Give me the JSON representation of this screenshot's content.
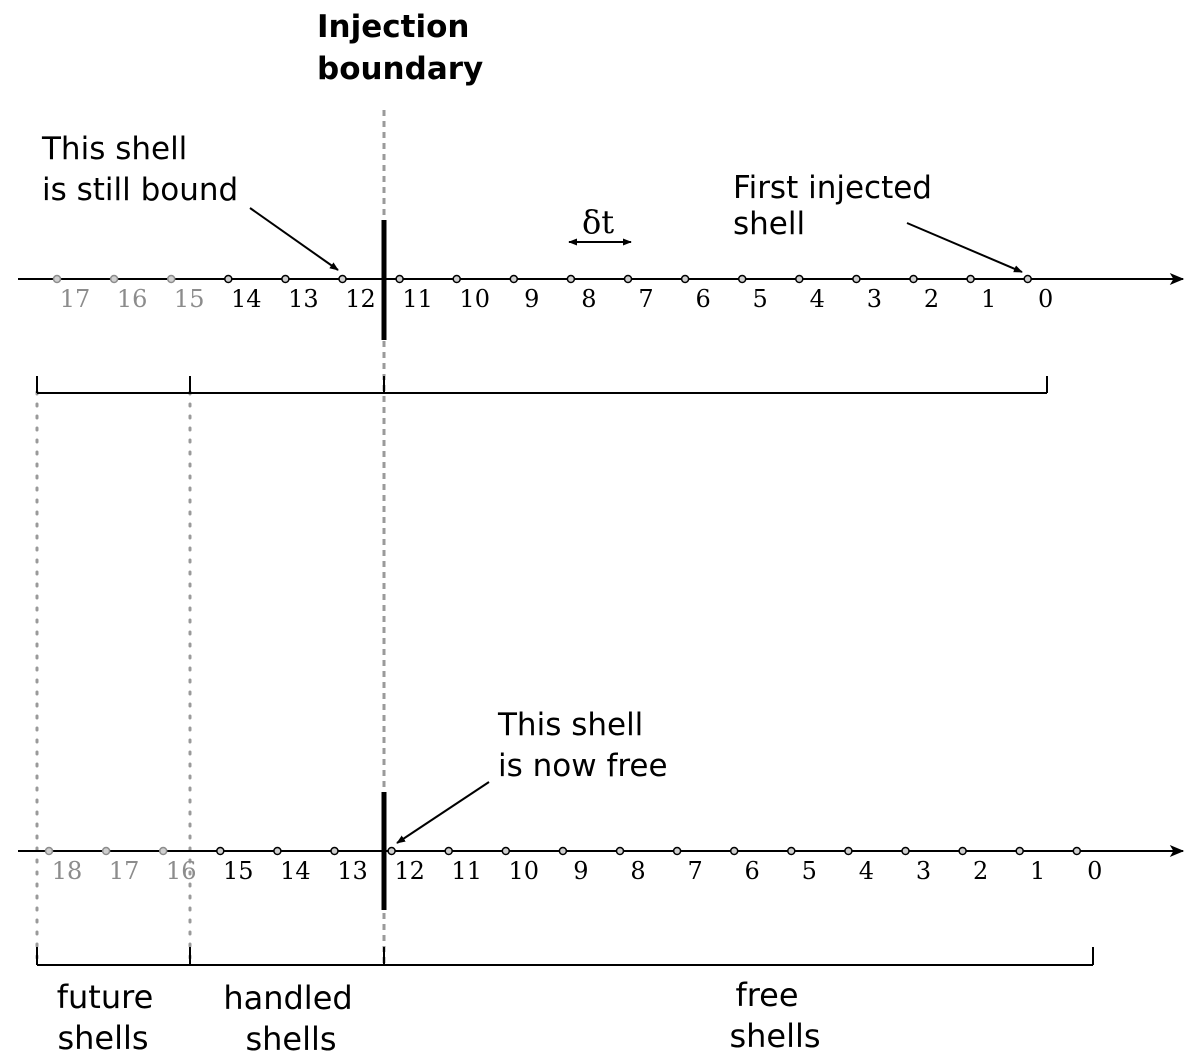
{
  "title_line1": "Injection",
  "title_line2": "boundary",
  "annotations": {
    "still_bound_line1": "This shell",
    "still_bound_line2": "is still bound",
    "first_injected_line1": "First injected",
    "first_injected_line2": "shell",
    "now_free_line1": "This shell",
    "now_free_line2": "is now free",
    "delta_t": "δt"
  },
  "timeline_top": {
    "labels": [
      "17",
      "16",
      "15",
      "14",
      "13",
      "12",
      "11",
      "10",
      "9",
      "8",
      "7",
      "6",
      "5",
      "4",
      "3",
      "2",
      "1",
      "0"
    ],
    "faded_count": 3
  },
  "timeline_bottom": {
    "labels": [
      "18",
      "17",
      "16",
      "15",
      "14",
      "13",
      "12",
      "11",
      "10",
      "9",
      "8",
      "7",
      "6",
      "5",
      "4",
      "3",
      "2",
      "1",
      "0"
    ],
    "faded_count": 3
  },
  "groups": {
    "future_line1": "future",
    "future_line2": "shells",
    "handled_line1": "handled",
    "handled_line2": "shells",
    "free_line1": "free",
    "free_line2": "shells"
  },
  "colors": {
    "ink": "#000000",
    "faded": "#8c8c8c",
    "boundary_dash": "#9a9a9a",
    "dot_fill": "#cfcfcf"
  }
}
